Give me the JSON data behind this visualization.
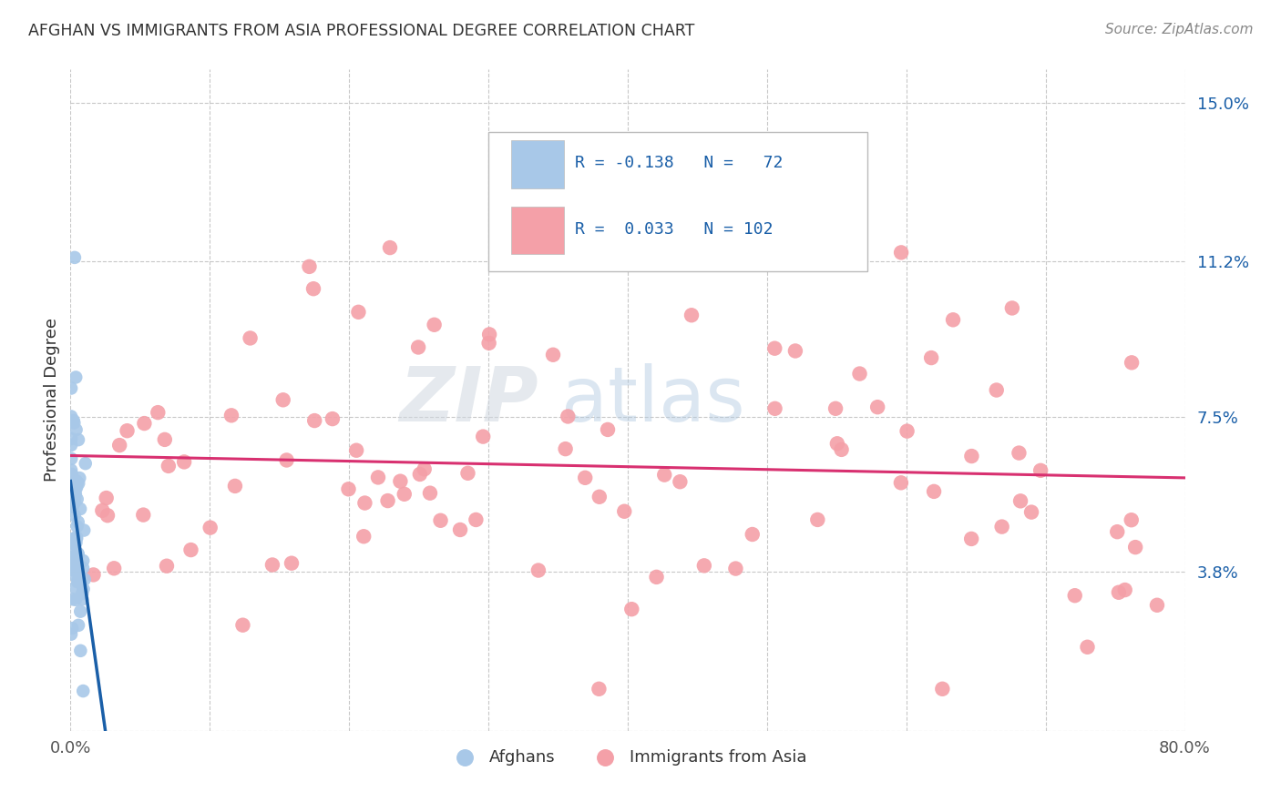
{
  "title": "AFGHAN VS IMMIGRANTS FROM ASIA PROFESSIONAL DEGREE CORRELATION CHART",
  "source": "Source: ZipAtlas.com",
  "ylabel": "Professional Degree",
  "xlim": [
    0.0,
    0.8
  ],
  "ylim": [
    0.0,
    0.158
  ],
  "xtick_positions": [
    0.0,
    0.1,
    0.2,
    0.3,
    0.4,
    0.5,
    0.6,
    0.7,
    0.8
  ],
  "ytick_positions": [
    0.0,
    0.038,
    0.075,
    0.112,
    0.15
  ],
  "ytick_labels": [
    "",
    "3.8%",
    "7.5%",
    "11.2%",
    "15.0%"
  ],
  "background_color": "#ffffff",
  "grid_color": "#c8c8c8",
  "watermark_zip": "ZIP",
  "watermark_atlas": "atlas",
  "blue_scatter_color": "#a8c8e8",
  "pink_scatter_color": "#f4a0a8",
  "blue_line_color": "#1a5fa8",
  "pink_line_color": "#d83070",
  "label1": "Afghans",
  "label2": "Immigrants from Asia",
  "legend_blue_text": "R = -0.138   N =   72",
  "legend_pink_text": "R =  0.033   N = 102",
  "legend_text_color": "#1a5fa8",
  "title_color": "#333333",
  "source_color": "#888888",
  "ylabel_color": "#333333",
  "tick_color": "#1a5fa8"
}
